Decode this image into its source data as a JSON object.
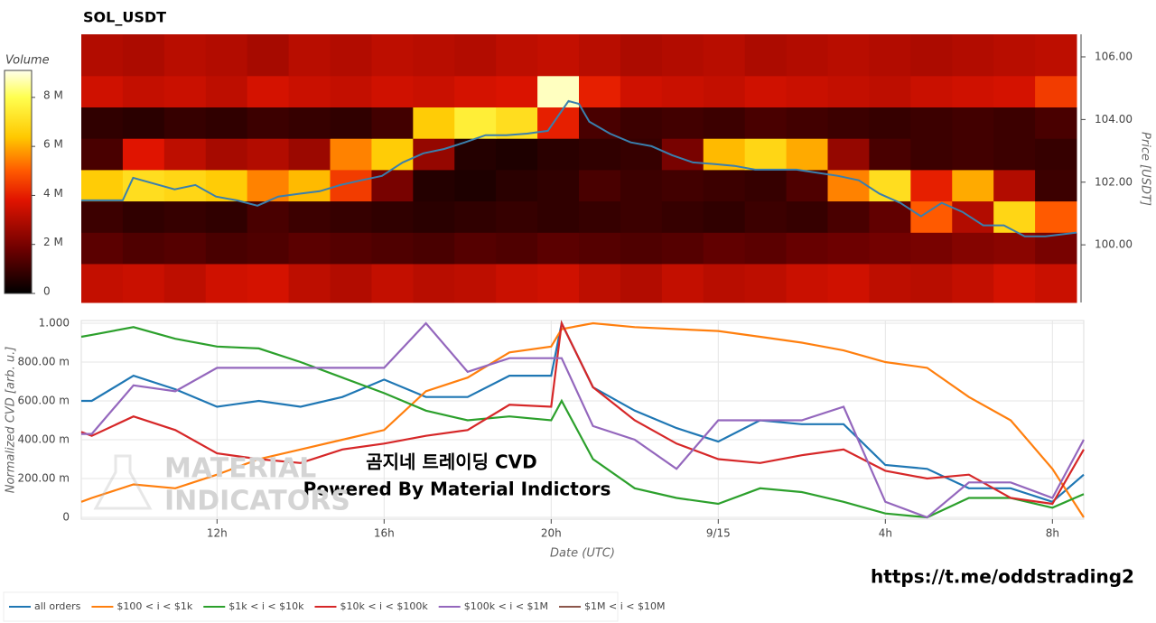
{
  "chart_data": [
    {
      "type": "heatmap",
      "title": "SOL_USDT",
      "time_bins": [
        8.75,
        9.75,
        10.75,
        11.75,
        12.75,
        13.75,
        14.75,
        15.75,
        16.75,
        17.75,
        18.75,
        19.75,
        20.75,
        21.75,
        22.75,
        23.75,
        24.75,
        25.75,
        26.75,
        27.75,
        28.75,
        29.75,
        30.75,
        31.75,
        32.75
      ],
      "price_bins": [
        98.16,
        99.4,
        100.4,
        101.4,
        102.4,
        103.4,
        104.4,
        105.4,
        106.72
      ],
      "volume": [
        [
          3.3,
          3.4,
          3.2,
          3.5,
          3.6,
          3.2,
          3.0,
          3.3,
          3.1,
          3.2,
          3.4,
          3.5,
          3.2,
          3.0,
          3.3,
          3.1,
          3.2,
          3.4,
          3.5,
          3.2,
          3.1,
          3.3,
          3.6,
          3.4
        ],
        [
          1.5,
          1.3,
          1.4,
          1.2,
          1.3,
          1.5,
          1.4,
          1.3,
          1.2,
          1.4,
          1.3,
          1.5,
          1.4,
          1.3,
          1.4,
          1.6,
          1.5,
          1.7,
          1.8,
          1.9,
          2.0,
          2.2,
          2.3,
          2.0
        ],
        [
          1.0,
          0.8,
          0.9,
          0.8,
          1.2,
          1.0,
          0.9,
          0.8,
          0.7,
          0.8,
          0.9,
          0.8,
          0.9,
          1.0,
          0.9,
          0.8,
          1.0,
          0.9,
          1.2,
          1.6,
          5.0,
          3.0,
          6.8,
          5.0
        ],
        [
          6.5,
          7.0,
          6.8,
          6.5,
          5.5,
          6.2,
          4.5,
          2.0,
          0.6,
          0.5,
          0.7,
          0.8,
          1.2,
          1.0,
          1.1,
          1.0,
          0.9,
          1.3,
          5.5,
          7.0,
          4.0,
          6.0,
          3.0,
          1.0
        ],
        [
          1.2,
          3.8,
          3.2,
          2.8,
          3.0,
          2.6,
          5.5,
          6.5,
          2.5,
          0.6,
          0.5,
          0.7,
          0.8,
          0.9,
          2.0,
          6.2,
          6.8,
          6.0,
          2.5,
          1.2,
          1.0,
          1.1,
          1.0,
          0.9
        ],
        [
          0.8,
          0.7,
          0.9,
          0.8,
          1.0,
          0.9,
          0.8,
          1.1,
          6.5,
          7.5,
          7.0,
          4.0,
          1.2,
          1.0,
          1.1,
          1.0,
          1.2,
          1.1,
          1.0,
          0.9,
          1.0,
          1.1,
          1.0,
          1.2
        ],
        [
          3.5,
          3.3,
          3.4,
          3.2,
          3.6,
          3.4,
          3.3,
          3.5,
          3.4,
          3.6,
          3.7,
          8.8,
          4.0,
          3.5,
          3.4,
          3.3,
          3.5,
          3.4,
          3.3,
          3.2,
          3.4,
          3.5,
          3.6,
          4.5
        ],
        [
          3.0,
          2.9,
          3.1,
          3.0,
          2.8,
          3.1,
          3.0,
          3.2,
          3.1,
          3.0,
          3.2,
          3.3,
          3.1,
          2.9,
          3.0,
          3.1,
          2.9,
          3.0,
          3.1,
          3.0,
          2.9,
          3.0,
          3.1,
          3.2
        ]
      ],
      "colorbar_title": "Volume",
      "zlim": [
        0,
        9.1
      ],
      "zticks": [
        0,
        {
          "value": 2,
          "label": "2 M"
        },
        {
          "value": 4,
          "label": "4 M"
        },
        {
          "value": 6,
          "label": "6 M"
        },
        {
          "value": 8,
          "label": "8 M"
        }
      ],
      "y_label": "Price [USDT]",
      "ylim": [
        98.16,
        106.72
      ],
      "yticks": [
        {
          "value": 100,
          "label": "100.00"
        },
        {
          "value": 102,
          "label": "102.00"
        },
        {
          "value": 104,
          "label": "104.00"
        },
        {
          "value": 106,
          "label": "106.00"
        }
      ],
      "xlim": [
        8.75,
        32.75
      ],
      "price_line": {
        "color": "#3a7fad",
        "x": [
          8.75,
          9.75,
          10,
          11,
          11.5,
          12,
          12.5,
          13,
          13.5,
          14,
          14.5,
          15,
          15.5,
          16,
          16.5,
          17,
          17.5,
          18,
          18.5,
          19,
          19.5,
          20,
          20.5,
          20.75,
          21,
          21.5,
          22,
          22.5,
          23,
          23.5,
          24,
          24.5,
          25,
          26,
          27,
          27.5,
          28,
          28.5,
          29,
          29.5,
          30,
          30.5,
          31,
          31.5,
          32,
          32.75
        ],
        "values": [
          101.42,
          101.42,
          102.14,
          101.77,
          101.91,
          101.54,
          101.42,
          101.25,
          101.54,
          101.63,
          101.71,
          101.91,
          102.06,
          102.2,
          102.63,
          102.92,
          103.06,
          103.27,
          103.5,
          103.5,
          103.55,
          103.64,
          104.59,
          104.5,
          103.93,
          103.55,
          103.27,
          103.15,
          102.86,
          102.63,
          102.58,
          102.52,
          102.4,
          102.4,
          102.2,
          102.06,
          101.63,
          101.34,
          100.91,
          101.34,
          101.05,
          100.62,
          100.62,
          100.27,
          100.27,
          100.39
        ]
      }
    },
    {
      "type": "line",
      "x": [
        8.75,
        9,
        10,
        11,
        12,
        13,
        14,
        15,
        16,
        17,
        18,
        19,
        20,
        20.25,
        21,
        22,
        23,
        24,
        25,
        26,
        27,
        28,
        29,
        30,
        31,
        32,
        32.75
      ],
      "series": [
        {
          "name": "all orders",
          "color": "#1f77b4",
          "values": [
            0.6,
            0.6,
            0.73,
            0.66,
            0.57,
            0.6,
            0.57,
            0.62,
            0.71,
            0.62,
            0.62,
            0.73,
            0.73,
            1.0,
            0.67,
            0.55,
            0.46,
            0.39,
            0.5,
            0.48,
            0.48,
            0.27,
            0.25,
            0.15,
            0.15,
            0.08,
            0.22
          ]
        },
        {
          "name": "$100 < i < $1k",
          "color": "#ff7f0e",
          "values": [
            0.08,
            0.1,
            0.17,
            0.15,
            0.22,
            0.3,
            0.35,
            0.4,
            0.45,
            0.65,
            0.72,
            0.85,
            0.88,
            0.97,
            1.0,
            0.98,
            0.97,
            0.96,
            0.93,
            0.9,
            0.86,
            0.8,
            0.77,
            0.62,
            0.5,
            0.25,
            0.0
          ]
        },
        {
          "name": "$1k < i < $10k",
          "color": "#2ca02c",
          "values": [
            0.93,
            0.94,
            0.98,
            0.92,
            0.88,
            0.87,
            0.8,
            0.72,
            0.64,
            0.55,
            0.5,
            0.52,
            0.5,
            0.6,
            0.3,
            0.15,
            0.1,
            0.07,
            0.15,
            0.13,
            0.08,
            0.02,
            0.0,
            0.1,
            0.1,
            0.05,
            0.12
          ]
        },
        {
          "name": "$10k < i < $100k",
          "color": "#d62728",
          "values": [
            0.44,
            0.42,
            0.52,
            0.45,
            0.33,
            0.3,
            0.28,
            0.35,
            0.38,
            0.42,
            0.45,
            0.58,
            0.57,
            1.0,
            0.67,
            0.5,
            0.38,
            0.3,
            0.28,
            0.32,
            0.35,
            0.24,
            0.2,
            0.22,
            0.1,
            0.07,
            0.35
          ]
        },
        {
          "name": "$100k < i < $1M",
          "color": "#9467bd",
          "values": [
            0.43,
            0.43,
            0.68,
            0.65,
            0.77,
            0.77,
            0.77,
            0.77,
            0.77,
            1.0,
            0.75,
            0.82,
            0.82,
            0.82,
            0.47,
            0.4,
            0.25,
            0.5,
            0.5,
            0.5,
            0.57,
            0.08,
            0.0,
            0.18,
            0.18,
            0.1,
            0.4
          ]
        },
        {
          "name": "$1M < i < $10M",
          "color": "#8c564b",
          "values": [
            null,
            null,
            null,
            null,
            null,
            null,
            null,
            null,
            null,
            null,
            null,
            null,
            null,
            null,
            null,
            null,
            null,
            null,
            null,
            null,
            null,
            null,
            null,
            null,
            null,
            null,
            null
          ]
        }
      ],
      "xlim": [
        8.75,
        32.75
      ],
      "xticks": [
        {
          "value": 12,
          "label": "12h"
        },
        {
          "value": 16,
          "label": "16h"
        },
        {
          "value": 20,
          "label": "20h"
        },
        {
          "value": 24,
          "label": "9/15"
        },
        {
          "value": 28,
          "label": "4h"
        },
        {
          "value": 32,
          "label": "8h"
        }
      ],
      "ylim": [
        0,
        1
      ],
      "yticks": [
        0,
        {
          "value": 0.2,
          "label": "200.00 m"
        },
        {
          "value": 0.4,
          "label": "400.00 m"
        },
        {
          "value": 0.6,
          "label": "600.00 m"
        },
        {
          "value": 0.8,
          "label": "800.00 m"
        },
        {
          "value": 1,
          "label": "1.000"
        }
      ],
      "x_label": "Date (UTC)",
      "y_label": "Normalized CVD [arb. u.]",
      "grid": true,
      "annotations": [
        "곰지네 트레이딩 CVD",
        "Powered By Material Indictors",
        "MATERIAL",
        "INDICATORS"
      ]
    }
  ],
  "footer_link": "https://t.me/oddstrading2"
}
